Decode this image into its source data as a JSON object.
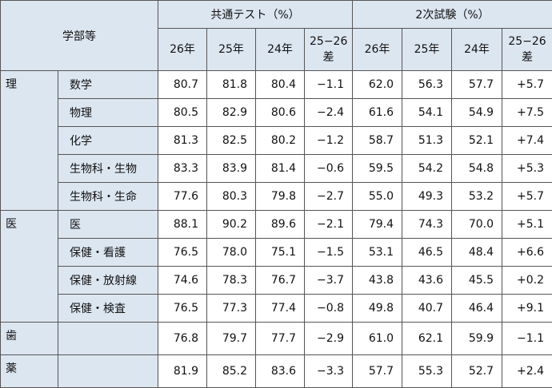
{
  "header": {
    "group_label": "学部等",
    "sections": [
      "共通テスト（%）",
      "2次試験（%）"
    ],
    "columns": [
      "26年",
      "25年",
      "24年",
      "25−26\n差"
    ]
  },
  "groups": [
    {
      "name": "理",
      "rows": [
        {
          "dept": "数学",
          "values": [
            "80.7",
            "81.8",
            "80.4",
            "−1.1",
            "62.0",
            "56.3",
            "57.7",
            "+5.7"
          ]
        },
        {
          "dept": "物理",
          "values": [
            "80.5",
            "82.9",
            "80.6",
            "−2.4",
            "61.6",
            "54.1",
            "54.9",
            "+7.5"
          ]
        },
        {
          "dept": "化学",
          "values": [
            "81.3",
            "82.5",
            "80.2",
            "−1.2",
            "58.7",
            "51.3",
            "52.1",
            "+7.4"
          ]
        },
        {
          "dept": "生物科・生物",
          "values": [
            "83.3",
            "83.9",
            "81.4",
            "−0.6",
            "59.5",
            "54.2",
            "54.8",
            "+5.3"
          ]
        },
        {
          "dept": "生物科・生命",
          "values": [
            "77.6",
            "80.3",
            "79.8",
            "−2.7",
            "55.0",
            "49.3",
            "53.2",
            "+5.7"
          ]
        }
      ]
    },
    {
      "name": "医",
      "rows": [
        {
          "dept": "医",
          "values": [
            "88.1",
            "90.2",
            "89.6",
            "−2.1",
            "79.4",
            "74.3",
            "70.0",
            "+5.1"
          ]
        },
        {
          "dept": "保健・看護",
          "values": [
            "76.5",
            "78.0",
            "75.1",
            "−1.5",
            "53.1",
            "46.5",
            "48.4",
            "+6.6"
          ]
        },
        {
          "dept": "保健・放射線",
          "values": [
            "74.6",
            "78.3",
            "76.7",
            "−3.7",
            "43.8",
            "43.6",
            "45.5",
            "+0.2"
          ]
        },
        {
          "dept": "保健・検査",
          "values": [
            "76.5",
            "77.3",
            "77.4",
            "−0.8",
            "49.8",
            "40.7",
            "46.4",
            "+9.1"
          ]
        }
      ]
    },
    {
      "name": "歯",
      "rows": [
        {
          "values": [
            "76.8",
            "79.7",
            "77.7",
            "−2.9",
            "61.0",
            "62.1",
            "59.9",
            "−1.1"
          ]
        }
      ]
    },
    {
      "name": "薬",
      "rows": [
        {
          "values": [
            "81.9",
            "85.2",
            "83.6",
            "−3.3",
            "57.7",
            "55.3",
            "52.7",
            "+2.4"
          ]
        }
      ]
    }
  ]
}
